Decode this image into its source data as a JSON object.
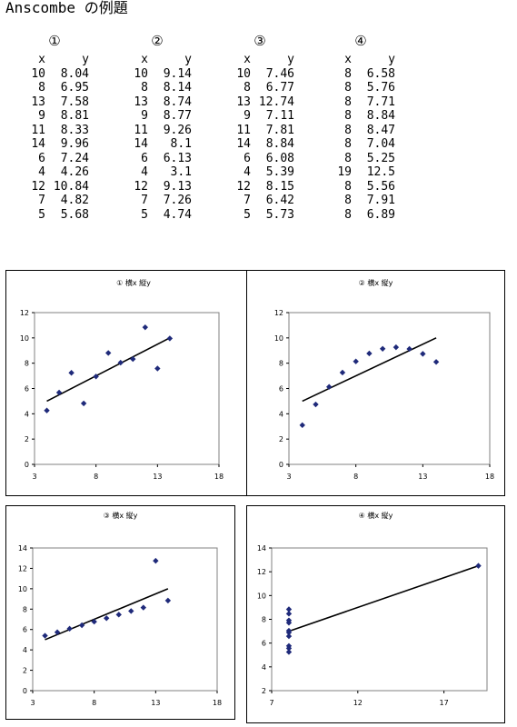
{
  "title": "Anscombe の例題",
  "datasets": [
    {
      "label": "①",
      "header_x": "x",
      "header_y": "y",
      "rows": [
        [
          "10",
          "8.04"
        ],
        [
          "8",
          "6.95"
        ],
        [
          "13",
          "7.58"
        ],
        [
          "9",
          "8.81"
        ],
        [
          "11",
          "8.33"
        ],
        [
          "14",
          "9.96"
        ],
        [
          "6",
          "7.24"
        ],
        [
          "4",
          "4.26"
        ],
        [
          "12",
          "10.84"
        ],
        [
          "7",
          "4.82"
        ],
        [
          "5",
          "5.68"
        ]
      ]
    },
    {
      "label": "②",
      "header_x": "x",
      "header_y": "y",
      "rows": [
        [
          "10",
          "9.14"
        ],
        [
          "8",
          "8.14"
        ],
        [
          "13",
          "8.74"
        ],
        [
          "9",
          "8.77"
        ],
        [
          "11",
          "9.26"
        ],
        [
          "14",
          "8.1"
        ],
        [
          "6",
          "6.13"
        ],
        [
          "4",
          "3.1"
        ],
        [
          "12",
          "9.13"
        ],
        [
          "7",
          "7.26"
        ],
        [
          "5",
          "4.74"
        ]
      ]
    },
    {
      "label": "③",
      "header_x": "x",
      "header_y": "y",
      "rows": [
        [
          "10",
          "7.46"
        ],
        [
          "8",
          "6.77"
        ],
        [
          "13",
          "12.74"
        ],
        [
          "9",
          "7.11"
        ],
        [
          "11",
          "7.81"
        ],
        [
          "14",
          "8.84"
        ],
        [
          "6",
          "6.08"
        ],
        [
          "4",
          "5.39"
        ],
        [
          "12",
          "8.15"
        ],
        [
          "7",
          "6.42"
        ],
        [
          "5",
          "5.73"
        ]
      ]
    },
    {
      "label": "④",
      "header_x": "x",
      "header_y": "y",
      "rows": [
        [
          "8",
          "6.58"
        ],
        [
          "8",
          "5.76"
        ],
        [
          "8",
          "7.71"
        ],
        [
          "8",
          "8.84"
        ],
        [
          "8",
          "8.47"
        ],
        [
          "8",
          "7.04"
        ],
        [
          "8",
          "5.25"
        ],
        [
          "19",
          "12.5"
        ],
        [
          "8",
          "5.56"
        ],
        [
          "8",
          "7.91"
        ],
        [
          "8",
          "6.89"
        ]
      ]
    }
  ],
  "chart_data": [
    {
      "type": "scatter",
      "title": "① 横x 縦y",
      "xlabel": "",
      "ylabel": "",
      "xlim": [
        3,
        18
      ],
      "ylim": [
        0,
        12
      ],
      "xticks": [
        3,
        8,
        13,
        18
      ],
      "yticks": [
        0,
        2,
        4,
        6,
        8,
        10,
        12
      ],
      "grid": false,
      "legend": "none",
      "marker_color": "#1f2a7a",
      "points": [
        [
          10,
          8.04
        ],
        [
          8,
          6.95
        ],
        [
          13,
          7.58
        ],
        [
          9,
          8.81
        ],
        [
          11,
          8.33
        ],
        [
          14,
          9.96
        ],
        [
          6,
          7.24
        ],
        [
          4,
          4.26
        ],
        [
          12,
          10.84
        ],
        [
          7,
          4.82
        ],
        [
          5,
          5.68
        ]
      ],
      "trendline": {
        "from": [
          4,
          5.0
        ],
        "to": [
          14,
          10.0
        ]
      }
    },
    {
      "type": "scatter",
      "title": "② 横x 縦y",
      "xlabel": "",
      "ylabel": "",
      "xlim": [
        3,
        18
      ],
      "ylim": [
        0,
        12
      ],
      "xticks": [
        3,
        8,
        13,
        18
      ],
      "yticks": [
        0,
        2,
        4,
        6,
        8,
        10,
        12
      ],
      "grid": false,
      "legend": "none",
      "marker_color": "#1f2a7a",
      "points": [
        [
          10,
          9.14
        ],
        [
          8,
          8.14
        ],
        [
          13,
          8.74
        ],
        [
          9,
          8.77
        ],
        [
          11,
          9.26
        ],
        [
          14,
          8.1
        ],
        [
          6,
          6.13
        ],
        [
          4,
          3.1
        ],
        [
          12,
          9.13
        ],
        [
          7,
          7.26
        ],
        [
          5,
          4.74
        ]
      ],
      "trendline": {
        "from": [
          4,
          5.0
        ],
        "to": [
          14,
          10.0
        ]
      }
    },
    {
      "type": "scatter",
      "title": "③ 横x 縦y",
      "xlabel": "",
      "ylabel": "",
      "xlim": [
        3,
        18
      ],
      "ylim": [
        0,
        14
      ],
      "xticks": [
        3,
        8,
        13,
        18
      ],
      "yticks": [
        0,
        2,
        4,
        6,
        8,
        10,
        12,
        14
      ],
      "grid": false,
      "legend": "none",
      "marker_color": "#1f2a7a",
      "points": [
        [
          10,
          7.46
        ],
        [
          8,
          6.77
        ],
        [
          13,
          12.74
        ],
        [
          9,
          7.11
        ],
        [
          11,
          7.81
        ],
        [
          14,
          8.84
        ],
        [
          6,
          6.08
        ],
        [
          4,
          5.39
        ],
        [
          12,
          8.15
        ],
        [
          7,
          6.42
        ],
        [
          5,
          5.73
        ]
      ],
      "trendline": {
        "from": [
          4,
          5.0
        ],
        "to": [
          14,
          10.0
        ]
      }
    },
    {
      "type": "scatter",
      "title": "④ 横x 縦y",
      "xlabel": "",
      "ylabel": "",
      "xlim": [
        7,
        19.5
      ],
      "ylim": [
        2,
        14
      ],
      "xticks": [
        7,
        12,
        17
      ],
      "yticks": [
        2,
        4,
        6,
        8,
        10,
        12,
        14
      ],
      "grid": false,
      "legend": "none",
      "marker_color": "#1f2a7a",
      "points": [
        [
          8,
          6.58
        ],
        [
          8,
          5.76
        ],
        [
          8,
          7.71
        ],
        [
          8,
          8.84
        ],
        [
          8,
          8.47
        ],
        [
          8,
          7.04
        ],
        [
          8,
          5.25
        ],
        [
          19,
          12.5
        ],
        [
          8,
          5.56
        ],
        [
          8,
          7.91
        ],
        [
          8,
          6.89
        ]
      ],
      "trendline": {
        "from": [
          8,
          7.0
        ],
        "to": [
          19,
          12.5
        ]
      }
    }
  ]
}
